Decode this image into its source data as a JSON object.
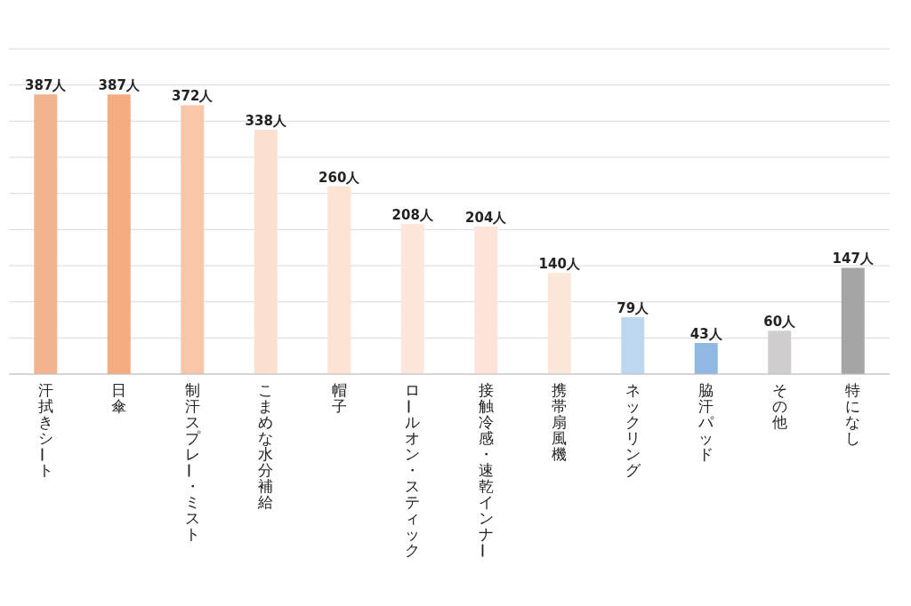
{
  "chart_data": {
    "type": "bar",
    "categories": [
      "汗拭きシート",
      "日傘",
      "制汗スプレー・ミスト",
      "こまめな水分補給",
      "帽子",
      "ロールオン・スティック",
      "接触冷感・速乾インナー",
      "携帯扇風機",
      "ネックリング",
      "脇汗パッド",
      "その他",
      "特になし"
    ],
    "values": [
      387,
      387,
      372,
      338,
      260,
      208,
      204,
      140,
      79,
      43,
      60,
      147
    ],
    "value_labels": [
      "387人",
      "387人",
      "372人",
      "338人",
      "260人",
      "208人",
      "204人",
      "140人",
      "79人",
      "43人",
      "60人",
      "147人"
    ],
    "colors": [
      "#f2b48f",
      "#f5ad80",
      "#f8c7a8",
      "#fbe0cf",
      "#fce3d3",
      "#fde6dc",
      "#fde3da",
      "#fde7d9",
      "#bdd7ee",
      "#8fb8e3",
      "#d0cece",
      "#a5a5a5"
    ],
    "ylim": [
      0,
      450
    ],
    "yticks": [
      {
        "value": 0,
        "label": null
      },
      {
        "value": 50,
        "label": null
      },
      {
        "value": 100,
        "label": null
      },
      {
        "value": 150,
        "label": null
      },
      {
        "value": 200,
        "label": null
      },
      {
        "value": 250,
        "label": null
      },
      {
        "value": 300,
        "label": null
      },
      {
        "value": 350,
        "label": null
      },
      {
        "value": 400,
        "label": null
      },
      {
        "value": 450,
        "label": null
      }
    ],
    "grid": "y"
  }
}
